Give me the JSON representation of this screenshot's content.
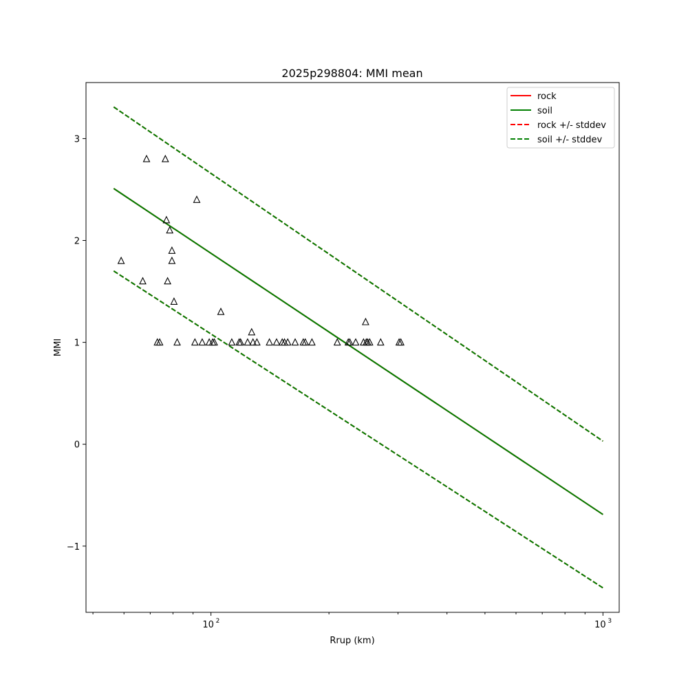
{
  "chart_data": {
    "type": "line",
    "title": "2025p298804: MMI mean",
    "xlabel": "Rrup (km)",
    "ylabel": "MMI",
    "x_scale": "log",
    "xlim": [
      48,
      1100
    ],
    "ylim": [
      -1.65,
      3.55
    ],
    "x_ticks": [
      {
        "value": 100,
        "base": "10",
        "exp": "2"
      },
      {
        "value": 1000,
        "base": "10",
        "exp": "3"
      }
    ],
    "y_ticks": [
      {
        "value": -1,
        "label": "−1"
      },
      {
        "value": 0,
        "label": "0"
      },
      {
        "value": 1,
        "label": "1"
      },
      {
        "value": 2,
        "label": "2"
      },
      {
        "value": 3,
        "label": "3"
      }
    ],
    "legend_position": "top-right",
    "series": [
      {
        "name": "rock",
        "style": "solid",
        "color": "#ff0000",
        "x": [
          56.5,
          1000
        ],
        "y": [
          2.51,
          -0.69
        ]
      },
      {
        "name": "soil",
        "style": "solid",
        "color": "#007f00",
        "x": [
          56.5,
          1000
        ],
        "y": [
          2.51,
          -0.69
        ]
      },
      {
        "name": "rock +/- stddev",
        "style": "dashed",
        "color": "#ff0000",
        "x": [
          56.5,
          1000
        ],
        "y": [
          3.31,
          0.03
        ]
      },
      {
        "name": "soil +/- stddev",
        "style": "dashed",
        "color": "#007f00",
        "x": [
          56.5,
          1000
        ],
        "y": [
          3.31,
          0.03
        ]
      }
    ],
    "lower_band": {
      "color": "#007f00",
      "x": [
        56.5,
        1000
      ],
      "y": [
        1.7,
        -1.41
      ]
    },
    "observations": {
      "marker": "triangle",
      "points": [
        [
          59,
          1.8
        ],
        [
          67,
          1.6
        ],
        [
          68.5,
          2.8
        ],
        [
          76.5,
          2.8
        ],
        [
          77,
          2.2
        ],
        [
          77.5,
          1.6
        ],
        [
          78.5,
          2.1
        ],
        [
          79.5,
          1.9
        ],
        [
          79.5,
          1.8
        ],
        [
          80.5,
          1.4
        ],
        [
          92,
          2.4
        ],
        [
          106,
          1.3
        ],
        [
          127,
          1.1
        ],
        [
          248,
          1.2
        ],
        [
          73,
          1.0
        ],
        [
          74,
          1.0
        ],
        [
          82,
          1.0
        ],
        [
          91,
          1.0
        ],
        [
          95,
          1.0
        ],
        [
          99,
          1.0
        ],
        [
          101,
          1.0
        ],
        [
          102,
          1.0
        ],
        [
          113,
          1.0
        ],
        [
          118,
          1.0
        ],
        [
          119,
          1.0
        ],
        [
          124,
          1.0
        ],
        [
          128,
          1.0
        ],
        [
          131,
          1.0
        ],
        [
          141,
          1.0
        ],
        [
          147,
          1.0
        ],
        [
          152,
          1.0
        ],
        [
          154,
          1.0
        ],
        [
          157,
          1.0
        ],
        [
          164,
          1.0
        ],
        [
          172,
          1.0
        ],
        [
          174,
          1.0
        ],
        [
          181,
          1.0
        ],
        [
          210,
          1.0
        ],
        [
          224,
          1.0
        ],
        [
          226,
          1.0
        ],
        [
          234,
          1.0
        ],
        [
          245,
          1.0
        ],
        [
          249,
          1.0
        ],
        [
          251,
          1.0
        ],
        [
          254,
          1.0
        ],
        [
          271,
          1.0
        ],
        [
          302,
          1.0
        ],
        [
          305,
          1.0
        ]
      ]
    }
  }
}
